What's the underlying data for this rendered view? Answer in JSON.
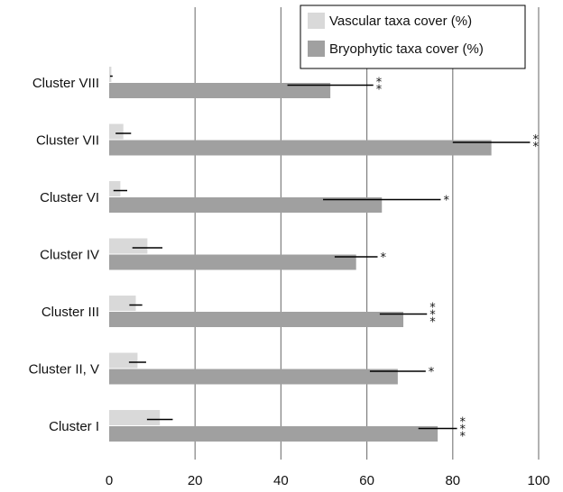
{
  "chart_data": {
    "type": "bar",
    "orientation": "horizontal",
    "categories": [
      "Cluster VIII",
      "Cluster VII",
      "Cluster VI",
      "Cluster IV",
      "Cluster III",
      "Cluster II, V",
      "Cluster I"
    ],
    "series": [
      {
        "name": "Vascular taxa cover (%)",
        "color": "#d9d9d9",
        "values": [
          0.5,
          3.3,
          2.6,
          8.9,
          6.2,
          6.6,
          11.8
        ],
        "error": [
          0.3,
          1.8,
          1.6,
          3.5,
          1.5,
          2.0,
          3.0
        ]
      },
      {
        "name": "Bryophytic taxa cover (%)",
        "color": "#a0a0a0",
        "values": [
          51.5,
          89.0,
          63.5,
          57.5,
          68.5,
          67.2,
          76.5
        ],
        "error": [
          10.0,
          9.0,
          13.7,
          5.0,
          5.5,
          6.5,
          4.5
        ]
      }
    ],
    "significance": [
      "**",
      "**",
      "*",
      "*",
      "***",
      "*",
      "***"
    ],
    "xlim": [
      0,
      100
    ],
    "xticks": [
      0,
      20,
      40,
      60,
      80,
      100
    ],
    "xlabel": "",
    "ylabel": "",
    "title": "",
    "grid": "vertical",
    "legend": "top-right"
  }
}
